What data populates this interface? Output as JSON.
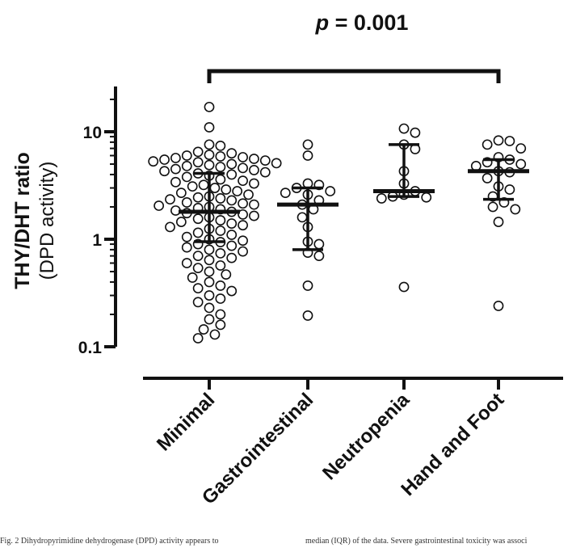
{
  "chart_data": {
    "type": "scatter",
    "subtype": "dot-plot-with-median-iqr",
    "title": "",
    "annotation": {
      "text": "p = 0.001",
      "italic_part": "p",
      "rest": " = 0.001",
      "spans": [
        "Minimal",
        "Hand and Foot"
      ]
    },
    "ylabel": "THY/DHT ratio",
    "ylabel_sub": "(DPD activity)",
    "xlabel": "",
    "yscale": "log",
    "ylim": [
      0.1,
      25
    ],
    "yticks": [
      0.1,
      1,
      10
    ],
    "ytick_labels": [
      "0.1",
      "1",
      "10"
    ],
    "grid": false,
    "categories": [
      "Minimal",
      "Gastrointestinal",
      "Neutropenia",
      "Hand and Foot"
    ],
    "series": [
      {
        "category": "Minimal",
        "median": 1.8,
        "q1": 0.95,
        "q3": 4.1,
        "values": [
          17.0,
          11.0,
          7.6,
          7.4,
          6.5,
          6.3,
          6.1,
          6.0,
          5.9,
          5.8,
          5.7,
          5.6,
          5.5,
          5.4,
          5.3,
          5.2,
          5.1,
          5.0,
          4.9,
          4.8,
          4.7,
          4.6,
          4.5,
          4.4,
          4.3,
          4.2,
          4.1,
          4.0,
          3.9,
          3.8,
          3.6,
          3.5,
          3.4,
          3.3,
          3.2,
          3.1,
          3.0,
          2.9,
          2.8,
          2.7,
          2.6,
          2.5,
          2.45,
          2.4,
          2.35,
          2.3,
          2.2,
          2.15,
          2.1,
          2.05,
          2.0,
          1.95,
          1.9,
          1.85,
          1.8,
          1.75,
          1.7,
          1.65,
          1.6,
          1.55,
          1.5,
          1.45,
          1.4,
          1.35,
          1.3,
          1.25,
          1.2,
          1.15,
          1.1,
          1.05,
          1.0,
          0.97,
          0.94,
          0.9,
          0.87,
          0.84,
          0.8,
          0.77,
          0.74,
          0.7,
          0.67,
          0.64,
          0.6,
          0.57,
          0.54,
          0.5,
          0.47,
          0.44,
          0.4,
          0.37,
          0.35,
          0.33,
          0.3,
          0.28,
          0.26,
          0.23,
          0.2,
          0.18,
          0.16,
          0.145,
          0.13,
          0.12
        ]
      },
      {
        "category": "Gastrointestinal",
        "median": 2.1,
        "q1": 0.8,
        "q3": 3.0,
        "values": [
          7.6,
          6.0,
          3.3,
          3.2,
          3.0,
          2.8,
          2.7,
          2.6,
          2.3,
          2.1,
          1.9,
          1.6,
          1.3,
          0.95,
          0.9,
          0.75,
          0.7,
          0.37,
          0.195
        ]
      },
      {
        "category": "Neutropenia",
        "median": 2.8,
        "q1": 2.5,
        "q3": 7.6,
        "values": [
          10.7,
          9.8,
          7.6,
          6.9,
          4.3,
          3.3,
          2.8,
          2.6,
          2.5,
          2.45,
          2.4,
          0.36
        ]
      },
      {
        "category": "Hand and Foot",
        "median": 4.3,
        "q1": 2.35,
        "q3": 5.5,
        "values": [
          8.3,
          8.2,
          7.6,
          7.0,
          5.8,
          5.5,
          5.2,
          5.0,
          4.8,
          4.3,
          4.2,
          3.7,
          3.1,
          2.9,
          2.5,
          2.2,
          2.0,
          1.9,
          1.45,
          0.24
        ]
      }
    ]
  },
  "caption": {
    "left": "Fig. 2 Dihydropyrimidine dehydrogenase (DPD) activity appears to",
    "right": "median (IQR) of the data. Severe gastrointestinal toxicity was associ"
  }
}
